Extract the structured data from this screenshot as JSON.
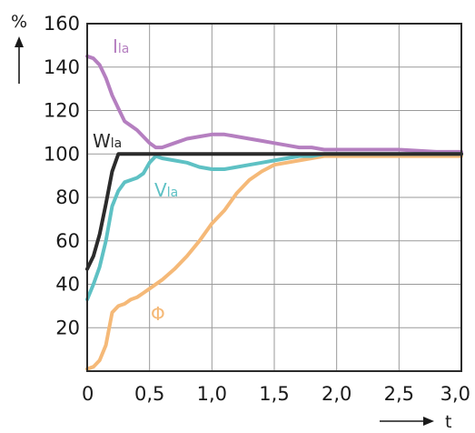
{
  "chart_data": {
    "type": "line",
    "ylabel": "%",
    "xlabel": "t",
    "xlim": [
      0,
      3.0
    ],
    "ylim": [
      0,
      160
    ],
    "x_ticks": [
      "0",
      "0,5",
      "1,0",
      "1,5",
      "2,0",
      "2,5",
      "3,0"
    ],
    "x_tick_values": [
      0,
      0.5,
      1.0,
      1.5,
      2.0,
      2.5,
      3.0
    ],
    "y_ticks": [
      "20",
      "40",
      "60",
      "80",
      "100",
      "120",
      "140",
      "160"
    ],
    "y_tick_values": [
      20,
      40,
      60,
      80,
      100,
      120,
      140,
      160
    ],
    "grid": true,
    "series": [
      {
        "name": "Ila",
        "label_main": "I",
        "label_sub": "la",
        "color": "#b57fc0",
        "x": [
          0,
          0.05,
          0.1,
          0.15,
          0.2,
          0.25,
          0.3,
          0.35,
          0.4,
          0.45,
          0.5,
          0.55,
          0.6,
          0.7,
          0.8,
          0.9,
          1.0,
          1.1,
          1.2,
          1.3,
          1.4,
          1.5,
          1.6,
          1.7,
          1.8,
          1.9,
          2.0,
          2.2,
          2.5,
          2.8,
          3.0
        ],
        "y": [
          145,
          144,
          141,
          135,
          127,
          121,
          115,
          113,
          111,
          108,
          105,
          103,
          103,
          105,
          107,
          108,
          109,
          109,
          108,
          107,
          106,
          105,
          104,
          103,
          103,
          102,
          102,
          102,
          102,
          101,
          101
        ]
      },
      {
        "name": "Wla",
        "label_main": "W",
        "label_sub": "la",
        "color": "#2b2b2b",
        "x": [
          0,
          0.05,
          0.1,
          0.15,
          0.2,
          0.25,
          0.3,
          0.5,
          1.0,
          1.5,
          2.0,
          2.5,
          3.0
        ],
        "y": [
          47,
          53,
          63,
          77,
          92,
          100,
          100,
          100,
          100,
          100,
          100,
          100,
          100
        ]
      },
      {
        "name": "Vla",
        "label_main": "V",
        "label_sub": "la",
        "color": "#5ec1c4",
        "x": [
          0,
          0.05,
          0.1,
          0.15,
          0.2,
          0.25,
          0.3,
          0.35,
          0.4,
          0.45,
          0.5,
          0.55,
          0.6,
          0.7,
          0.8,
          0.9,
          1.0,
          1.1,
          1.2,
          1.3,
          1.4,
          1.5,
          1.6,
          1.7,
          1.8,
          1.9,
          2.0,
          2.5,
          3.0
        ],
        "y": [
          33,
          40,
          48,
          60,
          76,
          83,
          87,
          88,
          89,
          91,
          96,
          99,
          98,
          97,
          96,
          94,
          93,
          93,
          94,
          95,
          96,
          97,
          98,
          99,
          99,
          100,
          100,
          100,
          100
        ]
      },
      {
        "name": "Φ",
        "label_main": "Φ",
        "label_sub": "",
        "color": "#f5b978",
        "x": [
          0,
          0.05,
          0.1,
          0.15,
          0.2,
          0.25,
          0.3,
          0.35,
          0.4,
          0.45,
          0.5,
          0.6,
          0.7,
          0.8,
          0.9,
          1.0,
          1.1,
          1.2,
          1.3,
          1.4,
          1.5,
          1.6,
          1.7,
          1.8,
          1.9,
          2.0,
          2.2,
          2.5,
          3.0
        ],
        "y": [
          1,
          2,
          5,
          12,
          27,
          30,
          31,
          33,
          34,
          36,
          38,
          42,
          47,
          53,
          60,
          68,
          74,
          82,
          88,
          92,
          95,
          96,
          97,
          98,
          99,
          99,
          99,
          99,
          99
        ]
      }
    ]
  }
}
